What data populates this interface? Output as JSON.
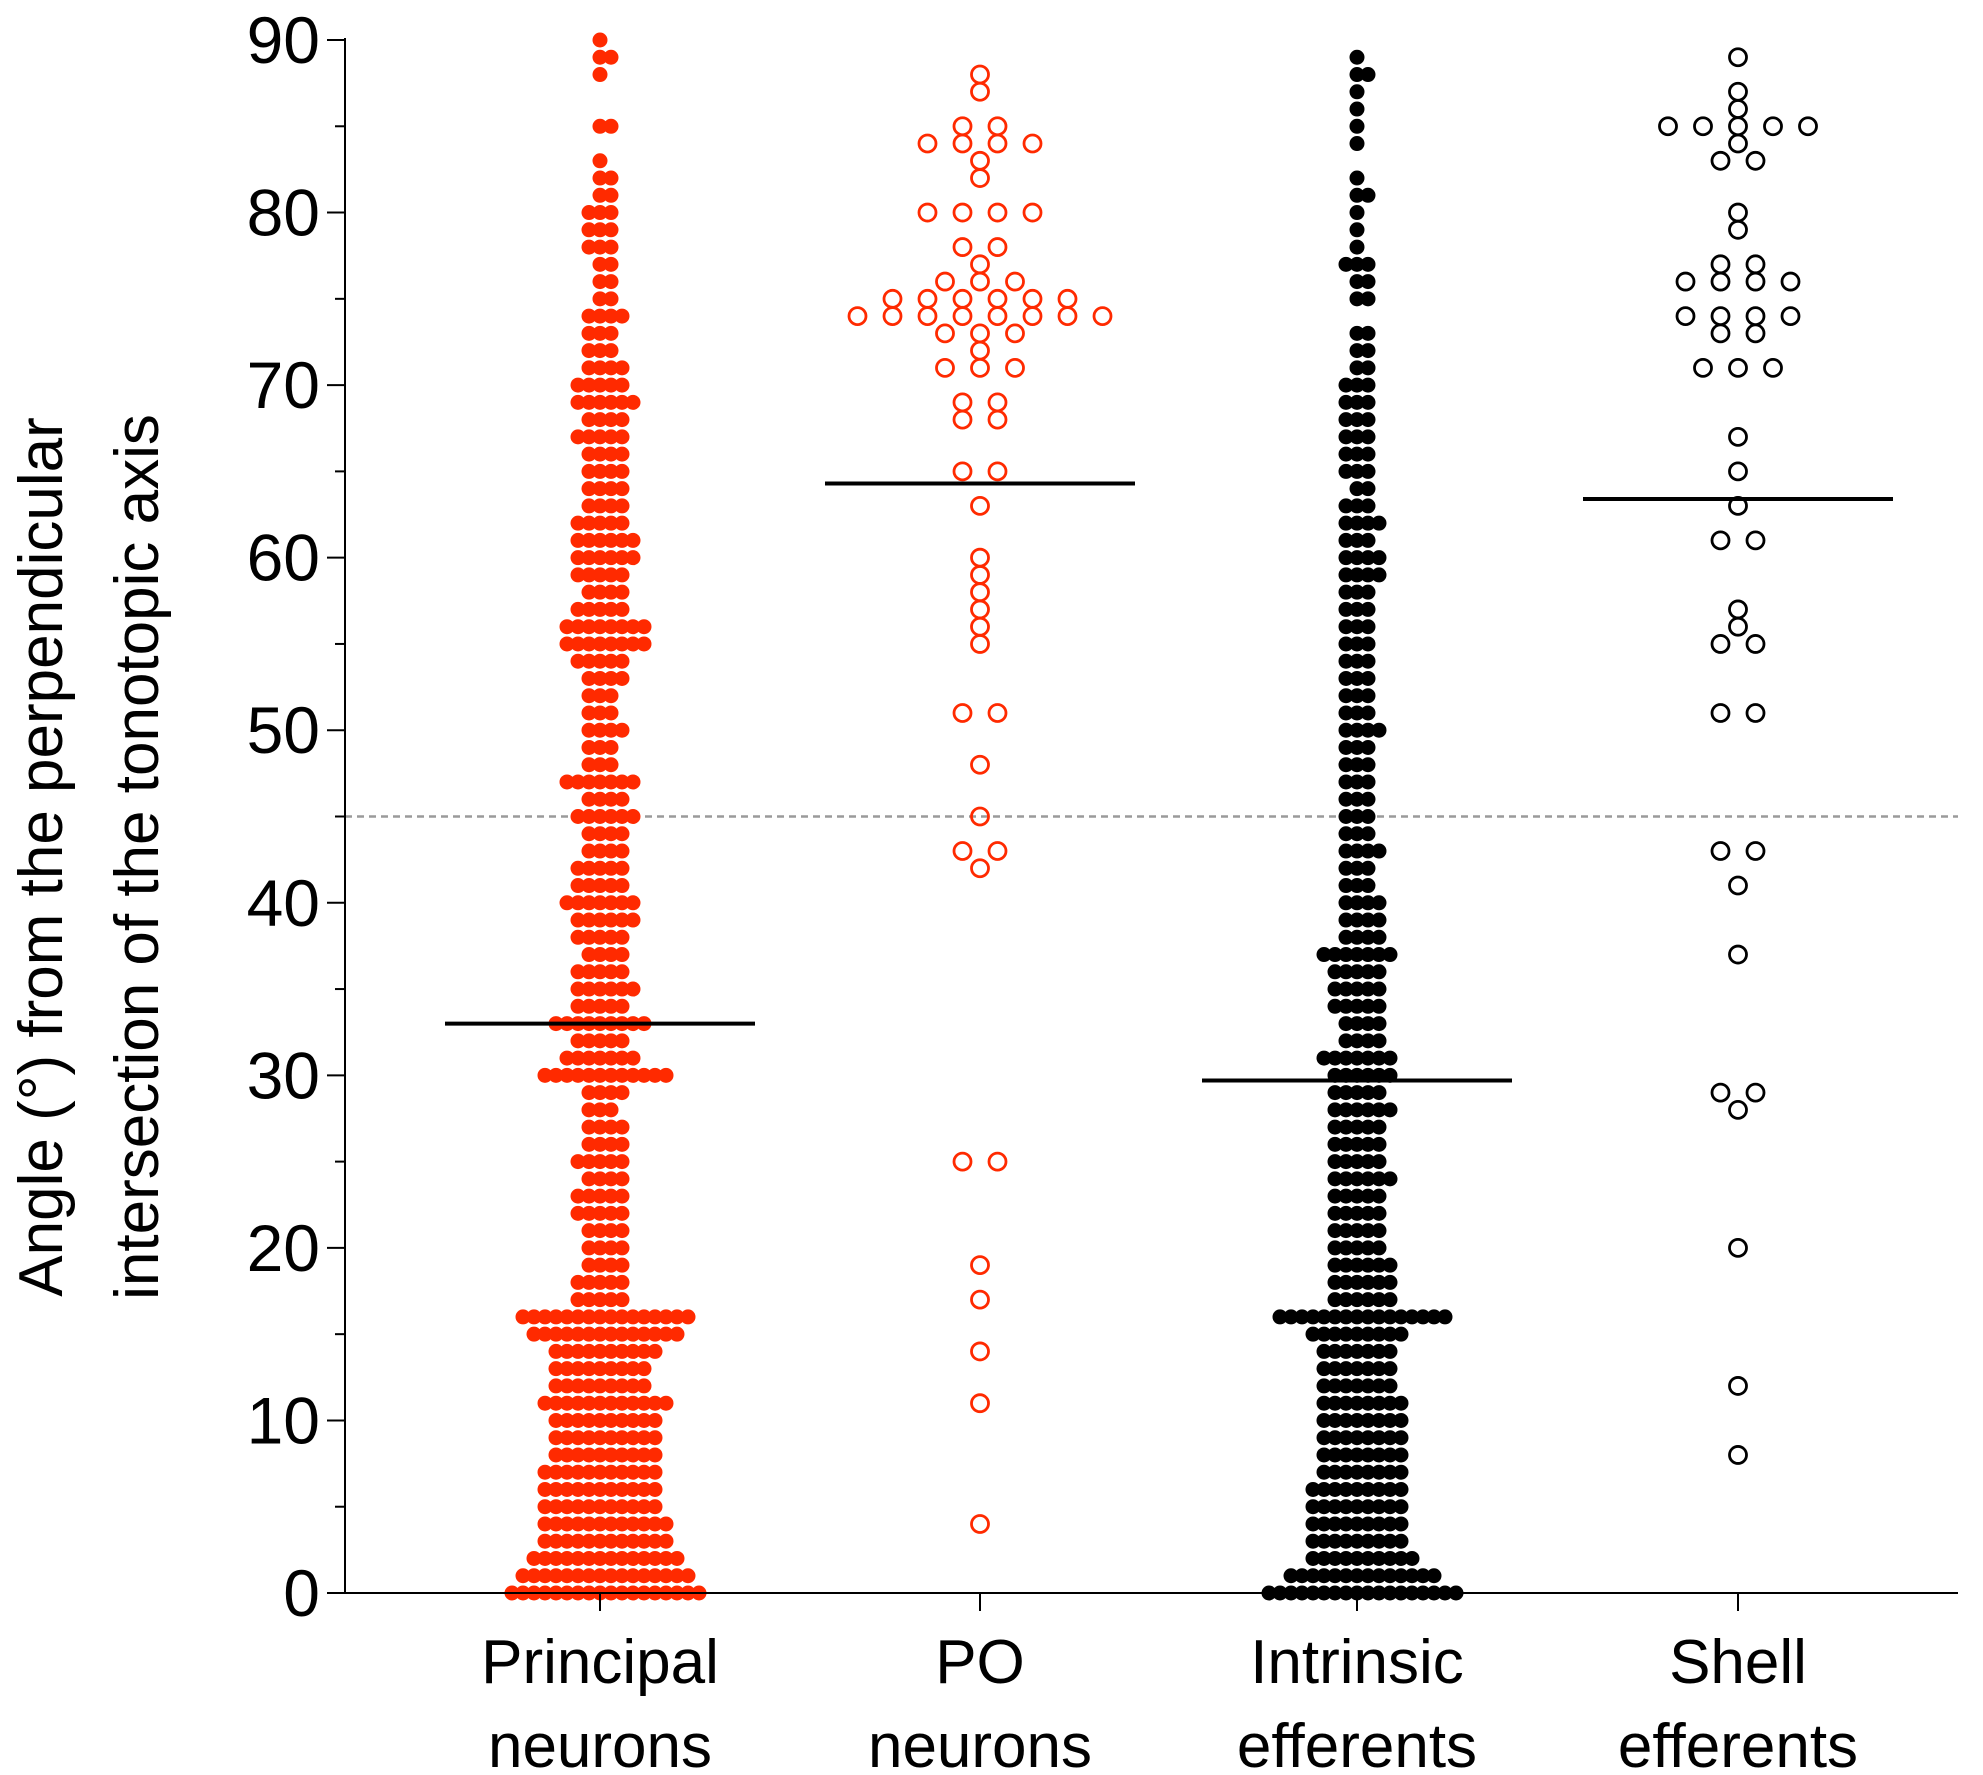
{
  "chart_data": {
    "type": "scatter",
    "subtype": "column-dot-plot",
    "title": "",
    "ylabel_lines": [
      "Angle (°) from the perpendicular",
      "intersection of the tonotopic axis"
    ],
    "xlabel": "",
    "ylim": [
      0,
      90
    ],
    "yticks": [
      0,
      10,
      20,
      30,
      40,
      50,
      60,
      70,
      80,
      90
    ],
    "reference_line": 45,
    "colors": {
      "red": "#ff2a00",
      "black": "#000000",
      "reference": "#9a9a9a"
    },
    "categories": [
      {
        "key": "principal",
        "label_lines": [
          "Principal",
          "neurons"
        ],
        "color": "#ff2a00",
        "marker": "filled",
        "median": 33,
        "approx_counts": [
          [
            0,
            18
          ],
          [
            1,
            16
          ],
          [
            2,
            14
          ],
          [
            3,
            12
          ],
          [
            4,
            12
          ],
          [
            5,
            11
          ],
          [
            6,
            11
          ],
          [
            7,
            11
          ],
          [
            8,
            10
          ],
          [
            9,
            10
          ],
          [
            10,
            10
          ],
          [
            11,
            12
          ],
          [
            12,
            9
          ],
          [
            13,
            9
          ],
          [
            14,
            10
          ],
          [
            15,
            14
          ],
          [
            16,
            16
          ],
          [
            17,
            5
          ],
          [
            18,
            5
          ],
          [
            19,
            4
          ],
          [
            20,
            4
          ],
          [
            21,
            4
          ],
          [
            22,
            5
          ],
          [
            23,
            5
          ],
          [
            24,
            4
          ],
          [
            25,
            5
          ],
          [
            26,
            4
          ],
          [
            27,
            4
          ],
          [
            28,
            3
          ],
          [
            29,
            4
          ],
          [
            30,
            12
          ],
          [
            31,
            7
          ],
          [
            32,
            5
          ],
          [
            33,
            9
          ],
          [
            34,
            5
          ],
          [
            35,
            6
          ],
          [
            36,
            5
          ],
          [
            37,
            4
          ],
          [
            38,
            5
          ],
          [
            39,
            6
          ],
          [
            40,
            7
          ],
          [
            41,
            5
          ],
          [
            42,
            5
          ],
          [
            43,
            4
          ],
          [
            44,
            4
          ],
          [
            45,
            6
          ],
          [
            46,
            4
          ],
          [
            47,
            7
          ],
          [
            48,
            3
          ],
          [
            49,
            3
          ],
          [
            50,
            4
          ],
          [
            51,
            3
          ],
          [
            52,
            3
          ],
          [
            53,
            4
          ],
          [
            54,
            5
          ],
          [
            55,
            8
          ],
          [
            56,
            8
          ],
          [
            57,
            5
          ],
          [
            58,
            4
          ],
          [
            59,
            5
          ],
          [
            60,
            6
          ],
          [
            61,
            6
          ],
          [
            62,
            5
          ],
          [
            63,
            4
          ],
          [
            64,
            4
          ],
          [
            65,
            4
          ],
          [
            66,
            4
          ],
          [
            67,
            5
          ],
          [
            68,
            4
          ],
          [
            69,
            6
          ],
          [
            70,
            5
          ],
          [
            71,
            4
          ],
          [
            72,
            3
          ],
          [
            73,
            3
          ],
          [
            74,
            4
          ],
          [
            75,
            2
          ],
          [
            76,
            2
          ],
          [
            77,
            2
          ],
          [
            78,
            3
          ],
          [
            79,
            3
          ],
          [
            80,
            3
          ],
          [
            81,
            2
          ],
          [
            82,
            2
          ],
          [
            83,
            1
          ],
          [
            85,
            2
          ],
          [
            88,
            1
          ],
          [
            89,
            2
          ],
          [
            90,
            1
          ]
        ]
      },
      {
        "key": "po",
        "label_lines": [
          "PO",
          "neurons"
        ],
        "color": "#ff2a00",
        "marker": "open",
        "median": 64.3,
        "points": [
          [
            4,
            1
          ],
          [
            11,
            1
          ],
          [
            14,
            1
          ],
          [
            17,
            1
          ],
          [
            19,
            1
          ],
          [
            25,
            2
          ],
          [
            42,
            1
          ],
          [
            43,
            2
          ],
          [
            45,
            1
          ],
          [
            48,
            1
          ],
          [
            51,
            2
          ],
          [
            55,
            1
          ],
          [
            56,
            1
          ],
          [
            57,
            1
          ],
          [
            58,
            1
          ],
          [
            59,
            1
          ],
          [
            60,
            1
          ],
          [
            63,
            1
          ],
          [
            65,
            2
          ],
          [
            68,
            2
          ],
          [
            69,
            2
          ],
          [
            70,
            0
          ],
          [
            71,
            3
          ],
          [
            72,
            1
          ],
          [
            73,
            3
          ],
          [
            74,
            8
          ],
          [
            75,
            6
          ],
          [
            76,
            3
          ],
          [
            77,
            1
          ],
          [
            78,
            2
          ],
          [
            80,
            4
          ],
          [
            82,
            1
          ],
          [
            83,
            1
          ],
          [
            84,
            4
          ],
          [
            85,
            2
          ],
          [
            87,
            1
          ],
          [
            88,
            1
          ]
        ]
      },
      {
        "key": "intrinsic",
        "label_lines": [
          "Intrinsic",
          "efferents"
        ],
        "color": "#000000",
        "marker": "filled",
        "median": 29.7,
        "approx_counts": [
          [
            0,
            18
          ],
          [
            1,
            14
          ],
          [
            2,
            10
          ],
          [
            3,
            9
          ],
          [
            4,
            9
          ],
          [
            5,
            9
          ],
          [
            6,
            9
          ],
          [
            7,
            8
          ],
          [
            8,
            8
          ],
          [
            9,
            8
          ],
          [
            10,
            8
          ],
          [
            11,
            8
          ],
          [
            12,
            7
          ],
          [
            13,
            7
          ],
          [
            14,
            7
          ],
          [
            15,
            9
          ],
          [
            16,
            16
          ],
          [
            17,
            6
          ],
          [
            18,
            6
          ],
          [
            19,
            6
          ],
          [
            20,
            5
          ],
          [
            21,
            5
          ],
          [
            22,
            5
          ],
          [
            23,
            5
          ],
          [
            24,
            6
          ],
          [
            25,
            5
          ],
          [
            26,
            5
          ],
          [
            27,
            5
          ],
          [
            28,
            6
          ],
          [
            29,
            5
          ],
          [
            30,
            6
          ],
          [
            31,
            7
          ],
          [
            32,
            4
          ],
          [
            33,
            4
          ],
          [
            34,
            5
          ],
          [
            35,
            5
          ],
          [
            36,
            5
          ],
          [
            37,
            7
          ],
          [
            38,
            4
          ],
          [
            39,
            4
          ],
          [
            40,
            4
          ],
          [
            41,
            3
          ],
          [
            42,
            3
          ],
          [
            43,
            4
          ],
          [
            44,
            3
          ],
          [
            45,
            3
          ],
          [
            46,
            3
          ],
          [
            47,
            3
          ],
          [
            48,
            3
          ],
          [
            49,
            3
          ],
          [
            50,
            4
          ],
          [
            51,
            3
          ],
          [
            52,
            3
          ],
          [
            53,
            3
          ],
          [
            54,
            3
          ],
          [
            55,
            3
          ],
          [
            56,
            3
          ],
          [
            57,
            3
          ],
          [
            58,
            3
          ],
          [
            59,
            4
          ],
          [
            60,
            4
          ],
          [
            61,
            3
          ],
          [
            62,
            4
          ],
          [
            63,
            3
          ],
          [
            64,
            2
          ],
          [
            65,
            3
          ],
          [
            66,
            3
          ],
          [
            67,
            3
          ],
          [
            68,
            3
          ],
          [
            69,
            3
          ],
          [
            70,
            3
          ],
          [
            71,
            2
          ],
          [
            72,
            2
          ],
          [
            73,
            2
          ],
          [
            75,
            2
          ],
          [
            76,
            2
          ],
          [
            77,
            3
          ],
          [
            78,
            1
          ],
          [
            79,
            1
          ],
          [
            80,
            1
          ],
          [
            81,
            2
          ],
          [
            82,
            1
          ],
          [
            84,
            1
          ],
          [
            85,
            1
          ],
          [
            86,
            1
          ],
          [
            87,
            1
          ],
          [
            88,
            2
          ],
          [
            89,
            1
          ]
        ]
      },
      {
        "key": "shell",
        "label_lines": [
          "Shell",
          "efferents"
        ],
        "color": "#000000",
        "marker": "open",
        "median": 63.4,
        "points": [
          [
            8,
            1
          ],
          [
            12,
            1
          ],
          [
            20,
            1
          ],
          [
            28,
            1
          ],
          [
            29,
            2
          ],
          [
            37,
            1
          ],
          [
            41,
            1
          ],
          [
            43,
            2
          ],
          [
            51,
            2
          ],
          [
            55,
            2
          ],
          [
            56,
            1
          ],
          [
            57,
            1
          ],
          [
            61,
            2
          ],
          [
            63,
            1
          ],
          [
            65,
            1
          ],
          [
            67,
            1
          ],
          [
            71,
            3
          ],
          [
            73,
            2
          ],
          [
            74,
            4
          ],
          [
            76,
            4
          ],
          [
            77,
            2
          ],
          [
            79,
            1
          ],
          [
            80,
            1
          ],
          [
            83,
            2
          ],
          [
            84,
            1
          ],
          [
            85,
            5
          ],
          [
            86,
            1
          ],
          [
            87,
            1
          ],
          [
            89,
            1
          ]
        ]
      }
    ]
  }
}
